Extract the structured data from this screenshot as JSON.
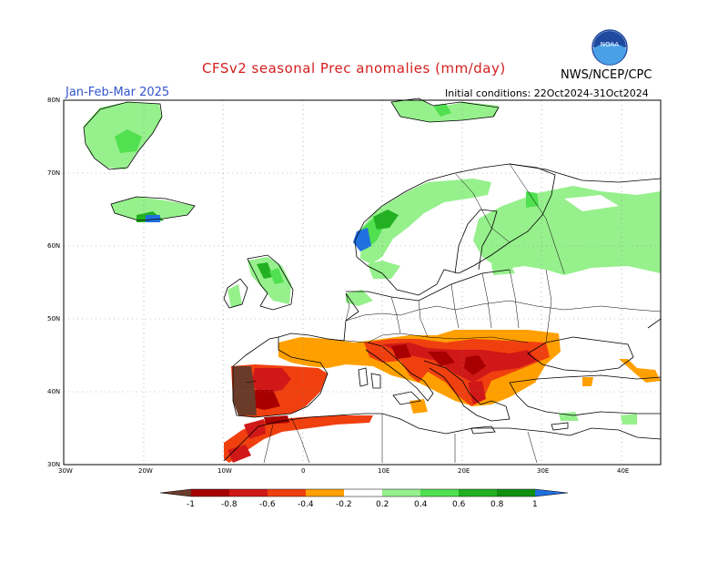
{
  "title": "CFSv2 seasonal Prec anomalies (mm/day)",
  "period": "Jan-Feb-Mar 2025",
  "initial_conditions": "Initial conditions: 22Oct2024-31Oct2024",
  "agency": "NWS/NCEP/CPC",
  "logo_text": "NOAA",
  "map": {
    "region": "Europe",
    "lon_range": [
      -30,
      45
    ],
    "lat_range": [
      30,
      80
    ],
    "lat_labels": [
      "80N",
      "70N",
      "60N",
      "50N",
      "40N",
      "30N"
    ],
    "lon_labels": [
      "30W",
      "20W",
      "10W",
      "0",
      "10E",
      "20E",
      "30E",
      "40E"
    ],
    "grid": true
  },
  "colorbar": {
    "unit": "mm/day",
    "labels": [
      "-1",
      "-0.8",
      "-0.6",
      "-0.4",
      "-0.2",
      "0.2",
      "0.4",
      "0.6",
      "0.8",
      "1"
    ],
    "colors": [
      "#6b3b2a",
      "#a80000",
      "#d01818",
      "#f04010",
      "#ffa000",
      "#ffffff",
      "#96f08c",
      "#50e050",
      "#22b022",
      "#109010",
      "#2070e0"
    ]
  }
}
